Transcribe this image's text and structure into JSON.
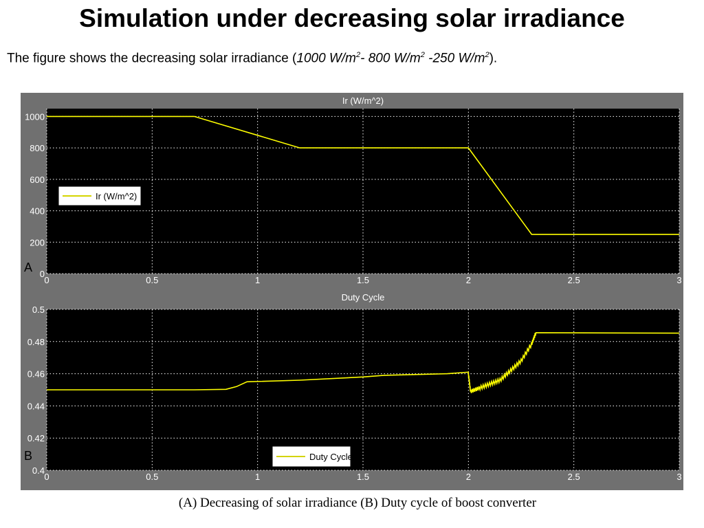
{
  "slide": {
    "title": "Simulation under decreasing solar irradiance",
    "subtitle_prefix": "The figure shows the decreasing solar irradiance (",
    "subtitle_v1": "1000 W/m",
    "subtitle_sup1": "2",
    "subtitle_v2": "- 800 W/m",
    "subtitle_sup2": "2",
    "subtitle_v3": " -250 W/m",
    "subtitle_sup3": "2",
    "subtitle_suffix": ").",
    "caption": "(A) Decreasing of solar irradiance (B) Duty cycle of boost converter"
  },
  "colors": {
    "plot_background": "#000000",
    "figure_background": "#707070",
    "trace": "#ffff00",
    "grid": "#ffffff"
  },
  "chart_data": [
    {
      "type": "line",
      "panel_label": "A",
      "title": "Ir (W/m^2)",
      "xlim": [
        0,
        3
      ],
      "ylim": [
        0,
        1050
      ],
      "xticks": [
        0,
        0.5,
        1,
        1.5,
        2,
        2.5,
        3
      ],
      "xtick_labels": [
        "0",
        "0.5",
        "1",
        "1.5",
        "2",
        "2.5",
        "3"
      ],
      "yticks": [
        0,
        200,
        400,
        600,
        800,
        1000
      ],
      "ytick_labels": [
        "0",
        "200",
        "400",
        "600",
        "800",
        "1000"
      ],
      "grid": true,
      "legend_position": "middle-left",
      "series": [
        {
          "name": "Ir (W/m^2)",
          "x": [
            0,
            0.7,
            1.2,
            2.0,
            2.3,
            3.0
          ],
          "y": [
            1000,
            1000,
            800,
            800,
            250,
            250
          ]
        }
      ]
    },
    {
      "type": "line",
      "panel_label": "B",
      "title": "Duty Cycle",
      "xlim": [
        0,
        3
      ],
      "ylim": [
        0.4,
        0.5
      ],
      "xticks": [
        0,
        0.5,
        1,
        1.5,
        2,
        2.5,
        3
      ],
      "xtick_labels": [
        "0",
        "0.5",
        "1",
        "1.5",
        "2",
        "2.5",
        "3"
      ],
      "yticks": [
        0.4,
        0.42,
        0.44,
        0.46,
        0.48,
        0.5
      ],
      "ytick_labels": [
        "0.4",
        "0.42",
        "0.44",
        "0.46",
        "0.48",
        "0.5"
      ],
      "grid": true,
      "legend_position": "bottom-center",
      "series": [
        {
          "name": "Duty Cycle",
          "x": [
            0,
            0.5,
            0.7,
            0.85,
            0.9,
            0.95,
            1.2,
            1.5,
            1.6,
            1.9,
            2.0,
            2.01,
            2.05,
            2.1,
            2.15,
            2.2,
            2.25,
            2.3,
            2.32,
            3.0
          ],
          "y": [
            0.45,
            0.45,
            0.45,
            0.4503,
            0.452,
            0.455,
            0.456,
            0.458,
            0.459,
            0.46,
            0.4598,
            0.449,
            0.451,
            0.4535,
            0.456,
            0.462,
            0.468,
            0.4785,
            0.4855,
            0.4852
          ]
        }
      ]
    }
  ]
}
